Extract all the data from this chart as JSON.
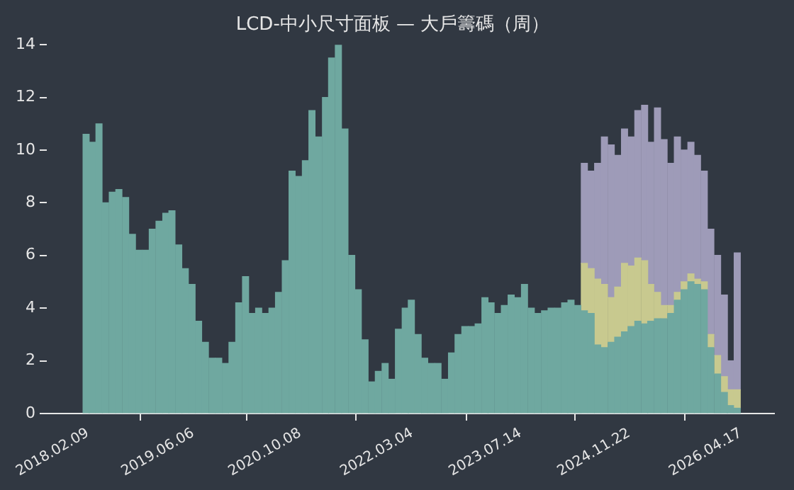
{
  "chart_data": {
    "type": "bar",
    "title": "LCD-中小尺寸面板 — 大戶籌碼（周）",
    "stacked": true,
    "x": [
      "2018-02",
      "2018-03",
      "2018-04",
      "2018-05",
      "2018-06",
      "2018-07",
      "2018-08",
      "2018-09",
      "2018-10",
      "2018-11",
      "2018-12",
      "2019-01",
      "2019-02",
      "2019-03",
      "2019-04",
      "2019-05",
      "2019-06",
      "2019-07",
      "2019-08",
      "2019-09",
      "2019-10",
      "2019-11",
      "2019-12",
      "2020-01",
      "2020-02",
      "2020-03",
      "2020-04",
      "2020-05",
      "2020-06",
      "2020-07",
      "2020-08",
      "2020-09",
      "2020-10",
      "2020-11",
      "2020-12",
      "2021-01",
      "2021-02",
      "2021-03",
      "2021-04",
      "2021-05",
      "2021-06",
      "2021-07",
      "2021-08",
      "2021-09",
      "2021-10",
      "2021-11",
      "2021-12",
      "2022-01",
      "2022-02",
      "2022-03",
      "2022-04",
      "2022-05",
      "2022-06",
      "2022-07",
      "2022-08",
      "2022-09",
      "2022-10",
      "2022-11",
      "2022-12",
      "2023-01",
      "2023-02",
      "2023-03",
      "2023-04",
      "2023-05",
      "2023-06",
      "2023-07",
      "2023-08",
      "2023-09",
      "2023-10",
      "2023-11",
      "2023-12",
      "2024-01",
      "2024-02",
      "2024-03",
      "2024-04",
      "2024-05",
      "2024-06",
      "2024-07",
      "2024-08",
      "2024-09",
      "2024-10",
      "2024-11",
      "2024-12",
      "2025-01",
      "2025-02",
      "2025-03",
      "2025-04",
      "2025-05",
      "2025-06",
      "2025-07",
      "2025-08",
      "2025-09",
      "2025-10",
      "2025-11",
      "2025-12",
      "2026-01",
      "2026-02",
      "2026-03",
      "2026-04"
    ],
    "series": [
      {
        "color": "#6fa8a0",
        "values": [
          10.6,
          10.3,
          11.0,
          8.0,
          8.4,
          8.5,
          8.2,
          6.8,
          6.2,
          6.2,
          7.0,
          7.3,
          7.6,
          7.7,
          6.4,
          5.5,
          4.9,
          3.5,
          2.7,
          2.1,
          2.1,
          1.9,
          2.7,
          4.2,
          5.2,
          3.8,
          4.0,
          3.8,
          4.0,
          4.6,
          5.8,
          9.2,
          9.0,
          9.6,
          11.5,
          10.5,
          12.0,
          13.5,
          14.0,
          10.8,
          6.0,
          4.7,
          2.8,
          1.2,
          1.6,
          1.9,
          1.3,
          3.2,
          4.0,
          4.3,
          3.0,
          2.1,
          1.9,
          1.9,
          1.3,
          2.3,
          3.0,
          3.3,
          3.3,
          3.4,
          4.4,
          4.2,
          3.8,
          4.1,
          4.5,
          4.4,
          4.9,
          4.0,
          3.8,
          3.9,
          4.0,
          4.0,
          4.2,
          4.3,
          4.1,
          3.9,
          3.8,
          2.6,
          2.5,
          2.7,
          2.9,
          3.1,
          3.3,
          3.5,
          3.4,
          3.5,
          3.6,
          3.6,
          3.8,
          4.3,
          4.7,
          5.0,
          4.9,
          4.7,
          2.5,
          1.5,
          0.8,
          0.3,
          0.2
        ]
      },
      {
        "color": "#c8c98f",
        "values": [
          null,
          null,
          null,
          null,
          null,
          null,
          null,
          null,
          null,
          null,
          null,
          null,
          null,
          null,
          null,
          null,
          null,
          null,
          null,
          null,
          null,
          null,
          null,
          null,
          null,
          null,
          null,
          null,
          null,
          null,
          null,
          null,
          null,
          null,
          null,
          null,
          null,
          null,
          null,
          null,
          null,
          null,
          null,
          null,
          null,
          null,
          null,
          null,
          null,
          null,
          null,
          null,
          null,
          null,
          null,
          null,
          null,
          null,
          null,
          null,
          null,
          null,
          null,
          null,
          null,
          null,
          null,
          null,
          null,
          null,
          null,
          null,
          null,
          null,
          null,
          1.8,
          1.7,
          2.5,
          2.4,
          1.7,
          1.9,
          2.6,
          2.3,
          2.4,
          2.4,
          1.4,
          1.0,
          0.5,
          0.3,
          0.3,
          0.3,
          0.3,
          0.2,
          0.3,
          0.5,
          0.7,
          0.6,
          0.6,
          0.7
        ]
      },
      {
        "color": "#9e9bb8",
        "values": [
          null,
          null,
          null,
          null,
          null,
          null,
          null,
          null,
          null,
          null,
          null,
          null,
          null,
          null,
          null,
          null,
          null,
          null,
          null,
          null,
          null,
          null,
          null,
          null,
          null,
          null,
          null,
          null,
          null,
          null,
          null,
          null,
          null,
          null,
          null,
          null,
          null,
          null,
          null,
          null,
          null,
          null,
          null,
          null,
          null,
          null,
          null,
          null,
          null,
          null,
          null,
          null,
          null,
          null,
          null,
          null,
          null,
          null,
          null,
          null,
          null,
          null,
          null,
          null,
          null,
          null,
          null,
          null,
          null,
          null,
          null,
          null,
          null,
          null,
          null,
          3.8,
          3.7,
          4.4,
          5.6,
          5.8,
          5.0,
          5.1,
          4.9,
          5.6,
          5.9,
          5.4,
          7.0,
          6.3,
          5.4,
          5.9,
          5.0,
          5.0,
          4.7,
          4.2,
          4.0,
          3.8,
          3.1,
          1.1,
          5.2
        ]
      }
    ],
    "xlim": [
      "2017-08-05",
      "2026-09-17"
    ],
    "xticks": [
      {
        "value": "2018-02-09",
        "label": "2018.02.09"
      },
      {
        "value": "2019-06-06",
        "label": "2019.06.06"
      },
      {
        "value": "2020-10-08",
        "label": "2020.10.08"
      },
      {
        "value": "2022-03-04",
        "label": "2022.03.04"
      },
      {
        "value": "2023-07-14",
        "label": "2023.07.14"
      },
      {
        "value": "2024-11-22",
        "label": "2024.11.22"
      },
      {
        "value": "2026-04-17",
        "label": "2026.04.17"
      }
    ],
    "ylim": [
      0,
      14
    ],
    "yticks": [
      0,
      2,
      4,
      6,
      8,
      10,
      12,
      14
    ]
  }
}
